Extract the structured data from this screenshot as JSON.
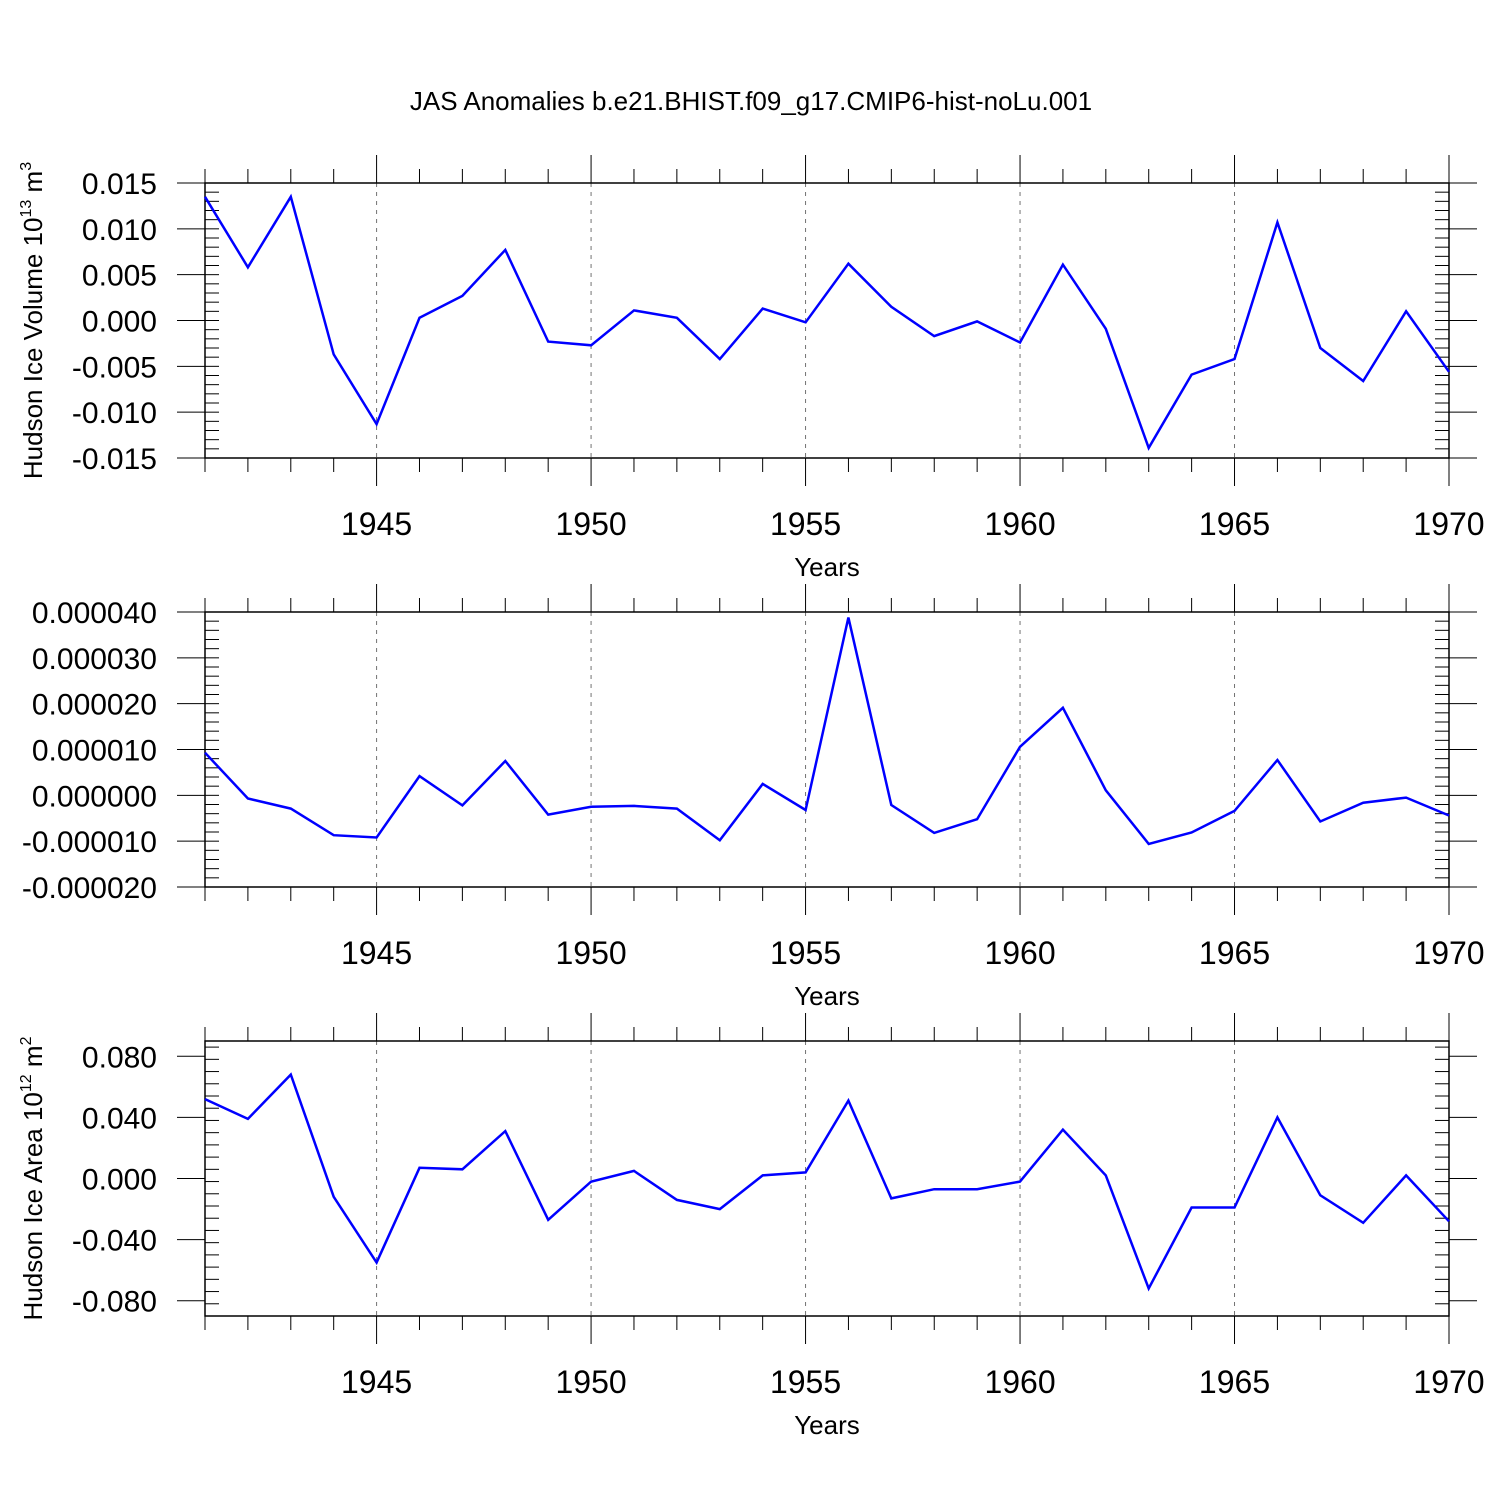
{
  "figure_title": "JAS Anomalies b.e21.BHIST.f09_g17.CMIP6-hist-noLu.001",
  "colors": {
    "line": "#0000ff",
    "axes": "#000000",
    "grid": "#000000"
  },
  "chart_data": [
    {
      "type": "line",
      "ylabel": {
        "prefix": "Hudson Ice Volume 10",
        "exp": "13",
        "unit": " m",
        "unit_exp": "3"
      },
      "xlabel": "Years",
      "xlim": [
        1941,
        1970
      ],
      "ylim": [
        -0.015,
        0.015
      ],
      "yticks": [
        "0.015",
        "0.010",
        "0.005",
        "0.000",
        "-0.005",
        "-0.010",
        "-0.015"
      ],
      "ytick_values": [
        0.015,
        0.01,
        0.005,
        0.0,
        -0.005,
        -0.01,
        -0.015
      ],
      "xticks": [
        "1945",
        "1950",
        "1955",
        "1960",
        "1965",
        "1970"
      ],
      "x": [
        1941,
        1942,
        1943,
        1944,
        1945,
        1946,
        1947,
        1948,
        1949,
        1950,
        1951,
        1952,
        1953,
        1954,
        1955,
        1956,
        1957,
        1958,
        1959,
        1960,
        1961,
        1962,
        1963,
        1964,
        1965,
        1966,
        1967,
        1968,
        1969,
        1970
      ],
      "values": [
        0.0135,
        0.0058,
        0.0135,
        -0.0037,
        -0.0113,
        0.0003,
        0.0027,
        0.0077,
        -0.0023,
        -0.0027,
        0.0011,
        0.0003,
        -0.0042,
        0.0013,
        -0.0002,
        0.0062,
        0.0015,
        -0.0017,
        -0.0001,
        -0.0024,
        0.0061,
        -0.0009,
        -0.0139,
        -0.0059,
        -0.0042,
        0.0107,
        -0.003,
        -0.0066,
        0.001,
        -0.0056
      ]
    },
    {
      "type": "line",
      "ylabel": null,
      "xlabel": "Years",
      "xlim": [
        1941,
        1970
      ],
      "ylim": [
        -2e-05,
        4e-05
      ],
      "yticks": [
        "0.000040",
        "0.000030",
        "0.000020",
        "0.000010",
        "0.000000",
        "-0.000010",
        "-0.000020"
      ],
      "ytick_values": [
        4e-05,
        3e-05,
        2e-05,
        1e-05,
        0.0,
        -1e-05,
        -2e-05
      ],
      "xticks": [
        "1945",
        "1950",
        "1955",
        "1960",
        "1965",
        "1970"
      ],
      "x": [
        1941,
        1942,
        1943,
        1944,
        1945,
        1946,
        1947,
        1948,
        1949,
        1950,
        1951,
        1952,
        1953,
        1954,
        1955,
        1956,
        1957,
        1958,
        1959,
        1960,
        1961,
        1962,
        1963,
        1964,
        1965,
        1966,
        1967,
        1968,
        1969,
        1970
      ],
      "values": [
        9.3e-06,
        -7e-07,
        -2.9e-06,
        -8.7e-06,
        -9.2e-06,
        4.2e-06,
        -2.2e-06,
        7.5e-06,
        -4.2e-06,
        -2.5e-06,
        -2.3e-06,
        -2.9e-06,
        -9.8e-06,
        2.5e-06,
        -3.2e-06,
        3.88e-05,
        -2.1e-06,
        -8.2e-06,
        -5.2e-06,
        1.06e-05,
        1.91e-05,
        1.1e-06,
        -1.06e-05,
        -8.1e-06,
        -3.4e-06,
        7.7e-06,
        -5.7e-06,
        -1.6e-06,
        -5e-07,
        -4.4e-06
      ]
    },
    {
      "type": "line",
      "ylabel": {
        "prefix": "Hudson Ice Area 10",
        "exp": "12",
        "unit": " m",
        "unit_exp": "2"
      },
      "xlabel": "Years",
      "xlim": [
        1941,
        1970
      ],
      "ylim": [
        -0.09,
        0.09
      ],
      "yticks": [
        "0.080",
        "0.040",
        "0.000",
        "-0.040",
        "-0.080"
      ],
      "ytick_values": [
        0.08,
        0.04,
        0.0,
        -0.04,
        -0.08
      ],
      "xticks": [
        "1945",
        "1950",
        "1955",
        "1960",
        "1965",
        "1970"
      ],
      "x": [
        1941,
        1942,
        1943,
        1944,
        1945,
        1946,
        1947,
        1948,
        1949,
        1950,
        1951,
        1952,
        1953,
        1954,
        1955,
        1956,
        1957,
        1958,
        1959,
        1960,
        1961,
        1962,
        1963,
        1964,
        1965,
        1966,
        1967,
        1968,
        1969,
        1970
      ],
      "values": [
        0.052,
        0.039,
        0.068,
        -0.012,
        -0.055,
        0.007,
        0.006,
        0.031,
        -0.027,
        -0.002,
        0.005,
        -0.014,
        -0.02,
        0.002,
        0.004,
        0.051,
        -0.013,
        -0.007,
        -0.007,
        -0.002,
        0.032,
        0.002,
        -0.072,
        -0.019,
        -0.019,
        0.04,
        -0.011,
        -0.029,
        0.002,
        -0.028
      ]
    }
  ]
}
